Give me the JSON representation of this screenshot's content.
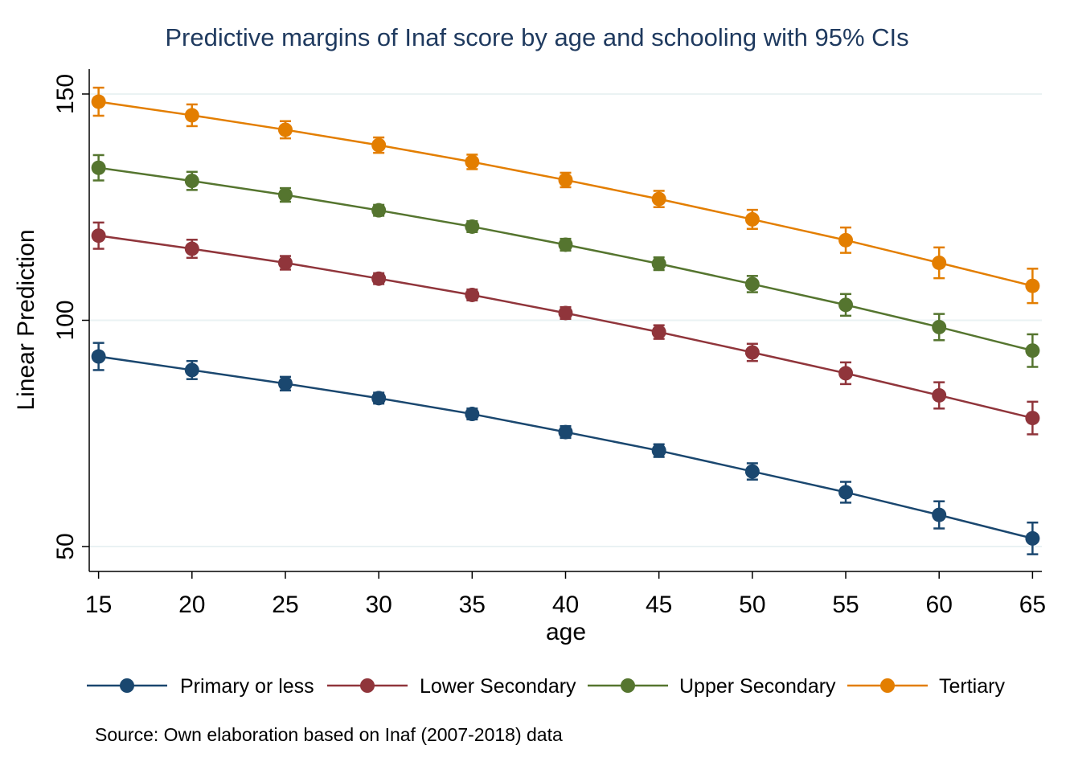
{
  "chart_data": {
    "type": "line",
    "title": "Predictive margins of Inaf score by age and schooling with 95% CIs",
    "xlabel": "age",
    "ylabel": "Linear Prediction",
    "x": [
      15,
      20,
      25,
      30,
      35,
      40,
      45,
      50,
      55,
      60,
      65
    ],
    "xticks": [
      "15",
      "20",
      "25",
      "30",
      "35",
      "40",
      "45",
      "50",
      "55",
      "60",
      "65"
    ],
    "yticks": [
      "50",
      "100",
      "150"
    ],
    "ytick_values": [
      50,
      100,
      150
    ],
    "xlim": [
      14.5,
      65.5
    ],
    "ylim": [
      44.5,
      155.5
    ],
    "grid": true,
    "legend_position": "bottom",
    "series": [
      {
        "name": "Primary or less",
        "color": "#1a476f",
        "values": [
          92.0,
          89.0,
          86.0,
          82.8,
          79.3,
          75.3,
          71.2,
          66.6,
          62.0,
          57.0,
          51.8
        ],
        "ci_lower": [
          89.0,
          87.0,
          84.5,
          81.6,
          78.1,
          74.0,
          69.8,
          64.8,
          59.7,
          54.0,
          48.3
        ],
        "ci_upper": [
          95.0,
          91.0,
          87.5,
          84.0,
          80.5,
          76.6,
          72.6,
          68.4,
          64.3,
          60.0,
          55.3
        ]
      },
      {
        "name": "Lower Secondary",
        "color": "#90353b",
        "values": [
          118.7,
          115.8,
          112.7,
          109.2,
          105.6,
          101.6,
          97.4,
          92.9,
          88.3,
          83.4,
          78.4
        ],
        "ci_lower": [
          115.8,
          113.8,
          111.2,
          108.0,
          104.4,
          100.3,
          95.9,
          91.0,
          85.9,
          80.5,
          74.8
        ],
        "ci_upper": [
          121.6,
          117.8,
          114.2,
          110.4,
          106.8,
          102.9,
          98.9,
          94.8,
          90.7,
          86.3,
          82.0
        ]
      },
      {
        "name": "Upper Secondary",
        "color": "#55752f",
        "values": [
          133.7,
          130.8,
          127.7,
          124.3,
          120.7,
          116.7,
          112.5,
          108.0,
          103.4,
          98.5,
          93.3
        ],
        "ci_lower": [
          130.9,
          128.8,
          126.2,
          123.1,
          119.5,
          115.4,
          111.1,
          106.2,
          101.0,
          95.6,
          89.7
        ],
        "ci_upper": [
          136.5,
          132.8,
          129.2,
          125.5,
          121.9,
          118.0,
          113.9,
          109.8,
          105.8,
          101.4,
          96.9
        ]
      },
      {
        "name": "Tertiary",
        "color": "#e37e00",
        "values": [
          148.3,
          145.3,
          142.1,
          138.7,
          135.0,
          131.0,
          126.8,
          122.3,
          117.7,
          112.7,
          107.6
        ],
        "ci_lower": [
          145.2,
          142.9,
          140.2,
          137.0,
          133.4,
          129.4,
          125.0,
          120.2,
          114.9,
          109.3,
          103.8
        ],
        "ci_upper": [
          151.4,
          147.7,
          144.0,
          140.4,
          136.6,
          132.6,
          128.6,
          124.4,
          120.5,
          116.1,
          111.4
        ]
      }
    ],
    "note": "Source: Own elaboration based on Inaf (2007-2018) data"
  }
}
